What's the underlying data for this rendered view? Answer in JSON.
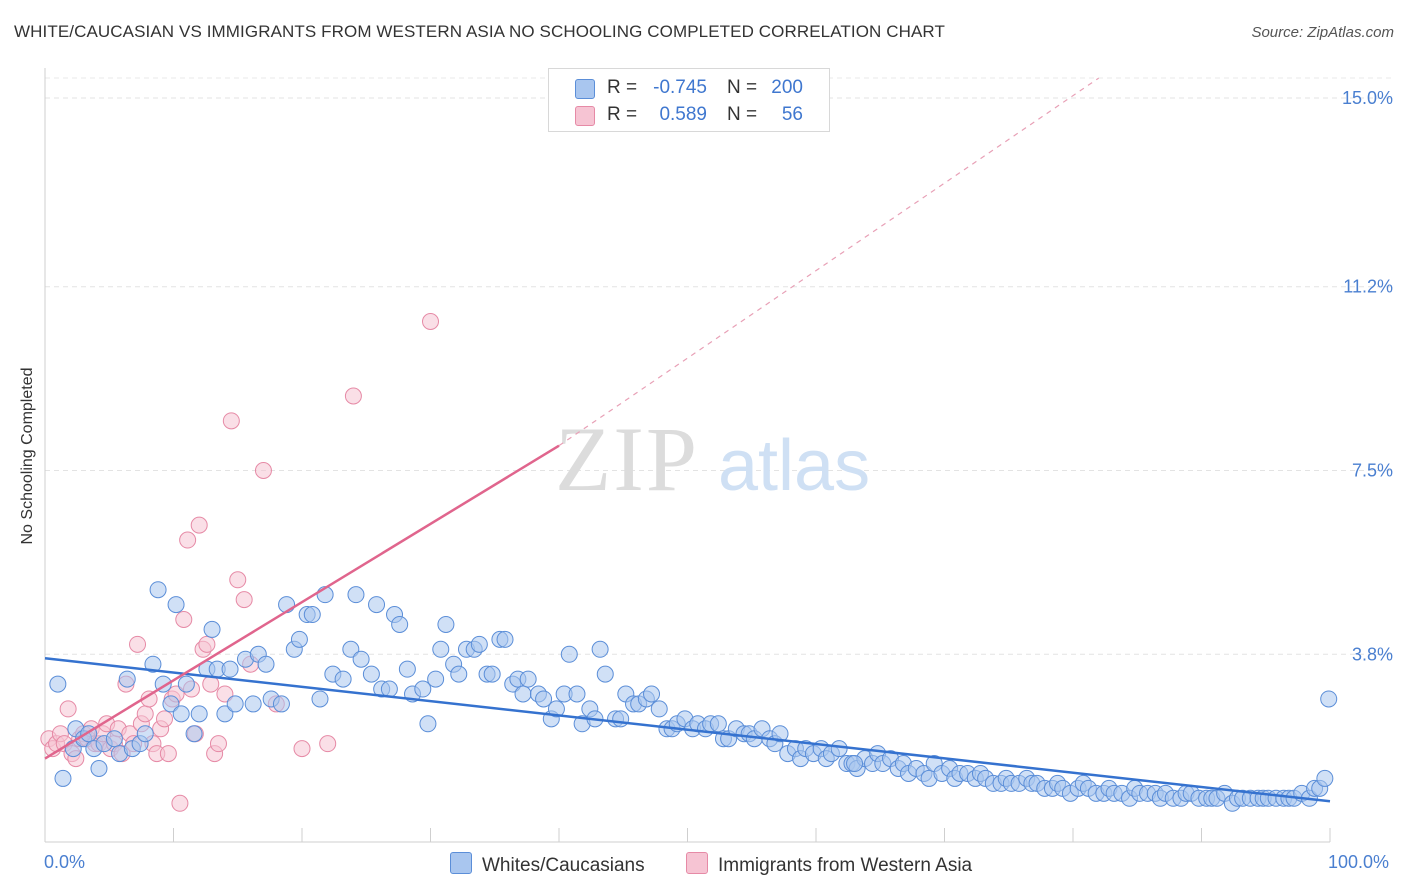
{
  "header": {
    "title": "WHITE/CAUCASIAN VS IMMIGRANTS FROM WESTERN ASIA NO SCHOOLING COMPLETED CORRELATION CHART",
    "source": "Source: ZipAtlas.com"
  },
  "legend": {
    "rows": [
      {
        "r_label": "R =",
        "r_value": "-0.745",
        "n_label": "N =",
        "n_value": "200"
      },
      {
        "r_label": "R =",
        "r_value": "0.589",
        "n_label": "N =",
        "n_value": "56"
      }
    ],
    "series": [
      "Whites/Caucasians",
      "Immigrants from Western Asia"
    ]
  },
  "watermark": {
    "zip": "ZIP",
    "atlas": "atlas"
  },
  "colors": {
    "blue_fill": "#a9c6ef",
    "blue_stroke": "#5b8ed8",
    "blue_line": "#3572cf",
    "pink_fill": "#f6c4d3",
    "pink_stroke": "#e68aa6",
    "pink_line": "#e0658d",
    "axis_text": "#4a7fd0"
  },
  "chart_data": {
    "type": "scatter",
    "title": "WHITE/CAUCASIAN VS IMMIGRANTS FROM WESTERN ASIA NO SCHOOLING COMPLETED CORRELATION CHART",
    "xlabel": "",
    "ylabel": "No Schooling Completed",
    "xlim": [
      0,
      100
    ],
    "ylim": [
      0,
      15.5
    ],
    "x_tick_labels": [
      "0.0%",
      "100.0%"
    ],
    "y_ticks": [
      3.8,
      7.5,
      11.2,
      15.0
    ],
    "y_tick_labels": [
      "3.8%",
      "7.5%",
      "11.2%",
      "15.0%"
    ],
    "grid": true,
    "legend_position": "top-center",
    "series": [
      {
        "name": "Whites/Caucasians",
        "r": -0.745,
        "n": 200,
        "trend": {
          "x": [
            0,
            100
          ],
          "y": [
            3.72,
            0.84
          ]
        },
        "points": [
          [
            1.0,
            3.2
          ],
          [
            1.4,
            1.3
          ],
          [
            2.2,
            1.9
          ],
          [
            2.4,
            2.3
          ],
          [
            3.0,
            2.1
          ],
          [
            3.4,
            2.2
          ],
          [
            3.8,
            1.9
          ],
          [
            4.2,
            1.5
          ],
          [
            4.6,
            2.0
          ],
          [
            5.4,
            2.1
          ],
          [
            5.8,
            1.8
          ],
          [
            6.4,
            3.3
          ],
          [
            6.8,
            1.9
          ],
          [
            7.4,
            2.0
          ],
          [
            7.8,
            2.2
          ],
          [
            8.4,
            3.6
          ],
          [
            8.8,
            5.1
          ],
          [
            9.2,
            3.2
          ],
          [
            9.8,
            2.8
          ],
          [
            10.2,
            4.8
          ],
          [
            10.6,
            2.6
          ],
          [
            11.0,
            3.2
          ],
          [
            11.6,
            2.2
          ],
          [
            12.0,
            2.6
          ],
          [
            12.6,
            3.5
          ],
          [
            13.0,
            4.3
          ],
          [
            13.4,
            3.5
          ],
          [
            14.0,
            2.6
          ],
          [
            14.4,
            3.5
          ],
          [
            14.8,
            2.8
          ],
          [
            15.6,
            3.7
          ],
          [
            16.2,
            2.8
          ],
          [
            16.6,
            3.8
          ],
          [
            17.2,
            3.6
          ],
          [
            17.6,
            2.9
          ],
          [
            18.4,
            2.8
          ],
          [
            18.8,
            4.8
          ],
          [
            19.4,
            3.9
          ],
          [
            19.8,
            4.1
          ],
          [
            20.4,
            4.6
          ],
          [
            20.8,
            4.6
          ],
          [
            21.4,
            2.9
          ],
          [
            21.8,
            5.0
          ],
          [
            22.4,
            3.4
          ],
          [
            23.2,
            3.3
          ],
          [
            23.8,
            3.9
          ],
          [
            24.2,
            5.0
          ],
          [
            24.6,
            3.7
          ],
          [
            25.4,
            3.4
          ],
          [
            25.8,
            4.8
          ],
          [
            26.2,
            3.1
          ],
          [
            26.8,
            3.1
          ],
          [
            27.2,
            4.6
          ],
          [
            27.6,
            4.4
          ],
          [
            28.2,
            3.5
          ],
          [
            28.6,
            3.0
          ],
          [
            29.4,
            3.1
          ],
          [
            29.8,
            2.4
          ],
          [
            30.4,
            3.3
          ],
          [
            30.8,
            3.9
          ],
          [
            31.2,
            4.4
          ],
          [
            31.8,
            3.6
          ],
          [
            32.2,
            3.4
          ],
          [
            32.8,
            3.9
          ],
          [
            33.4,
            3.9
          ],
          [
            33.8,
            4.0
          ],
          [
            34.4,
            3.4
          ],
          [
            34.8,
            3.4
          ],
          [
            35.4,
            4.1
          ],
          [
            35.8,
            4.1
          ],
          [
            36.4,
            3.2
          ],
          [
            36.8,
            3.3
          ],
          [
            37.2,
            3.0
          ],
          [
            37.6,
            3.3
          ],
          [
            38.4,
            3.0
          ],
          [
            38.8,
            2.9
          ],
          [
            39.4,
            2.5
          ],
          [
            39.8,
            2.7
          ],
          [
            40.4,
            3.0
          ],
          [
            40.8,
            3.8
          ],
          [
            41.4,
            3.0
          ],
          [
            41.8,
            2.4
          ],
          [
            42.4,
            2.7
          ],
          [
            42.8,
            2.5
          ],
          [
            43.2,
            3.9
          ],
          [
            43.6,
            3.4
          ],
          [
            44.4,
            2.5
          ],
          [
            44.8,
            2.5
          ],
          [
            45.2,
            3.0
          ],
          [
            45.8,
            2.8
          ],
          [
            46.2,
            2.8
          ],
          [
            46.8,
            2.9
          ],
          [
            47.2,
            3.0
          ],
          [
            47.8,
            2.7
          ],
          [
            48.4,
            2.3
          ],
          [
            48.8,
            2.3
          ],
          [
            49.2,
            2.4
          ],
          [
            49.8,
            2.5
          ],
          [
            50.4,
            2.3
          ],
          [
            50.8,
            2.4
          ],
          [
            51.4,
            2.3
          ],
          [
            51.8,
            2.4
          ],
          [
            52.4,
            2.4
          ],
          [
            52.8,
            2.1
          ],
          [
            53.2,
            2.1
          ],
          [
            53.8,
            2.3
          ],
          [
            54.4,
            2.2
          ],
          [
            54.8,
            2.2
          ],
          [
            55.2,
            2.1
          ],
          [
            55.8,
            2.3
          ],
          [
            56.4,
            2.1
          ],
          [
            56.8,
            2.0
          ],
          [
            57.2,
            2.2
          ],
          [
            57.8,
            1.8
          ],
          [
            58.4,
            1.9
          ],
          [
            58.8,
            1.7
          ],
          [
            59.2,
            1.9
          ],
          [
            59.8,
            1.8
          ],
          [
            60.4,
            1.9
          ],
          [
            60.8,
            1.7
          ],
          [
            61.2,
            1.8
          ],
          [
            61.8,
            1.9
          ],
          [
            62.4,
            1.6
          ],
          [
            62.8,
            1.6
          ],
          [
            63.2,
            1.5
          ],
          [
            63.8,
            1.7
          ],
          [
            64.4,
            1.6
          ],
          [
            64.8,
            1.8
          ],
          [
            65.2,
            1.6
          ],
          [
            65.8,
            1.7
          ],
          [
            66.4,
            1.5
          ],
          [
            66.8,
            1.6
          ],
          [
            67.2,
            1.4
          ],
          [
            67.8,
            1.5
          ],
          [
            68.4,
            1.4
          ],
          [
            68.8,
            1.3
          ],
          [
            69.2,
            1.6
          ],
          [
            69.8,
            1.4
          ],
          [
            70.4,
            1.5
          ],
          [
            70.8,
            1.3
          ],
          [
            71.2,
            1.4
          ],
          [
            71.8,
            1.4
          ],
          [
            72.4,
            1.3
          ],
          [
            72.8,
            1.4
          ],
          [
            73.2,
            1.3
          ],
          [
            73.8,
            1.2
          ],
          [
            74.4,
            1.2
          ],
          [
            74.8,
            1.3
          ],
          [
            75.2,
            1.2
          ],
          [
            75.8,
            1.2
          ],
          [
            76.4,
            1.3
          ],
          [
            76.8,
            1.2
          ],
          [
            77.2,
            1.2
          ],
          [
            77.8,
            1.1
          ],
          [
            78.4,
            1.1
          ],
          [
            78.8,
            1.2
          ],
          [
            79.2,
            1.1
          ],
          [
            79.8,
            1.0
          ],
          [
            80.4,
            1.1
          ],
          [
            80.8,
            1.2
          ],
          [
            81.2,
            1.1
          ],
          [
            81.8,
            1.0
          ],
          [
            82.4,
            1.0
          ],
          [
            82.8,
            1.1
          ],
          [
            83.2,
            1.0
          ],
          [
            83.8,
            1.0
          ],
          [
            84.4,
            0.9
          ],
          [
            84.8,
            1.1
          ],
          [
            85.2,
            1.0
          ],
          [
            85.8,
            1.0
          ],
          [
            86.4,
            1.0
          ],
          [
            86.8,
            0.9
          ],
          [
            87.2,
            1.0
          ],
          [
            87.8,
            0.9
          ],
          [
            88.4,
            0.9
          ],
          [
            88.8,
            1.0
          ],
          [
            89.2,
            1.0
          ],
          [
            89.8,
            0.9
          ],
          [
            90.4,
            0.9
          ],
          [
            90.8,
            0.9
          ],
          [
            91.2,
            0.9
          ],
          [
            91.8,
            1.0
          ],
          [
            92.4,
            0.8
          ],
          [
            92.8,
            0.9
          ],
          [
            93.2,
            0.9
          ],
          [
            93.8,
            0.9
          ],
          [
            94.4,
            0.9
          ],
          [
            94.8,
            0.9
          ],
          [
            95.2,
            0.9
          ],
          [
            95.8,
            0.9
          ],
          [
            96.4,
            0.9
          ],
          [
            96.8,
            0.9
          ],
          [
            97.2,
            0.9
          ],
          [
            97.8,
            1.0
          ],
          [
            98.4,
            0.9
          ],
          [
            98.8,
            1.1
          ],
          [
            99.2,
            1.1
          ],
          [
            99.6,
            1.3
          ],
          [
            99.9,
            2.9
          ],
          [
            63.0,
            1.6
          ]
        ]
      },
      {
        "name": "Immigrants from Western Asia",
        "r": 0.589,
        "n": 56,
        "trend": {
          "x": [
            0,
            40
          ],
          "y": [
            1.7,
            8.0
          ]
        },
        "trend_dashed": {
          "x": [
            40,
            82
          ],
          "y": [
            8.0,
            15.4
          ]
        },
        "points": [
          [
            0.3,
            2.1
          ],
          [
            0.6,
            1.9
          ],
          [
            0.9,
            2.0
          ],
          [
            1.2,
            2.2
          ],
          [
            1.5,
            2.0
          ],
          [
            1.8,
            2.7
          ],
          [
            2.1,
            1.8
          ],
          [
            2.4,
            1.7
          ],
          [
            2.7,
            2.1
          ],
          [
            3.0,
            2.2
          ],
          [
            3.3,
            2.1
          ],
          [
            3.6,
            2.3
          ],
          [
            3.9,
            2.0
          ],
          [
            4.2,
            2.0
          ],
          [
            4.5,
            2.2
          ],
          [
            4.8,
            2.4
          ],
          [
            5.1,
            1.9
          ],
          [
            5.4,
            2.0
          ],
          [
            5.7,
            2.3
          ],
          [
            6.0,
            1.8
          ],
          [
            6.3,
            3.2
          ],
          [
            6.6,
            2.2
          ],
          [
            6.9,
            2.0
          ],
          [
            7.2,
            4.0
          ],
          [
            7.5,
            2.4
          ],
          [
            7.8,
            2.6
          ],
          [
            8.1,
            2.9
          ],
          [
            8.4,
            2.0
          ],
          [
            8.7,
            1.8
          ],
          [
            9.0,
            2.3
          ],
          [
            9.3,
            2.5
          ],
          [
            9.6,
            1.8
          ],
          [
            9.9,
            2.9
          ],
          [
            10.2,
            3.0
          ],
          [
            10.5,
            0.8
          ],
          [
            10.8,
            4.5
          ],
          [
            11.1,
            6.1
          ],
          [
            11.4,
            3.1
          ],
          [
            11.7,
            2.2
          ],
          [
            12.0,
            6.4
          ],
          [
            12.3,
            3.9
          ],
          [
            12.6,
            4.0
          ],
          [
            12.9,
            3.2
          ],
          [
            13.2,
            1.8
          ],
          [
            13.5,
            2.0
          ],
          [
            14.0,
            3.0
          ],
          [
            14.5,
            8.5
          ],
          [
            15.0,
            5.3
          ],
          [
            15.5,
            4.9
          ],
          [
            16.0,
            3.6
          ],
          [
            17.0,
            7.5
          ],
          [
            18.0,
            2.8
          ],
          [
            20.0,
            1.9
          ],
          [
            22.0,
            2.0
          ],
          [
            24.0,
            9.0
          ],
          [
            30.0,
            10.5
          ]
        ]
      }
    ]
  }
}
